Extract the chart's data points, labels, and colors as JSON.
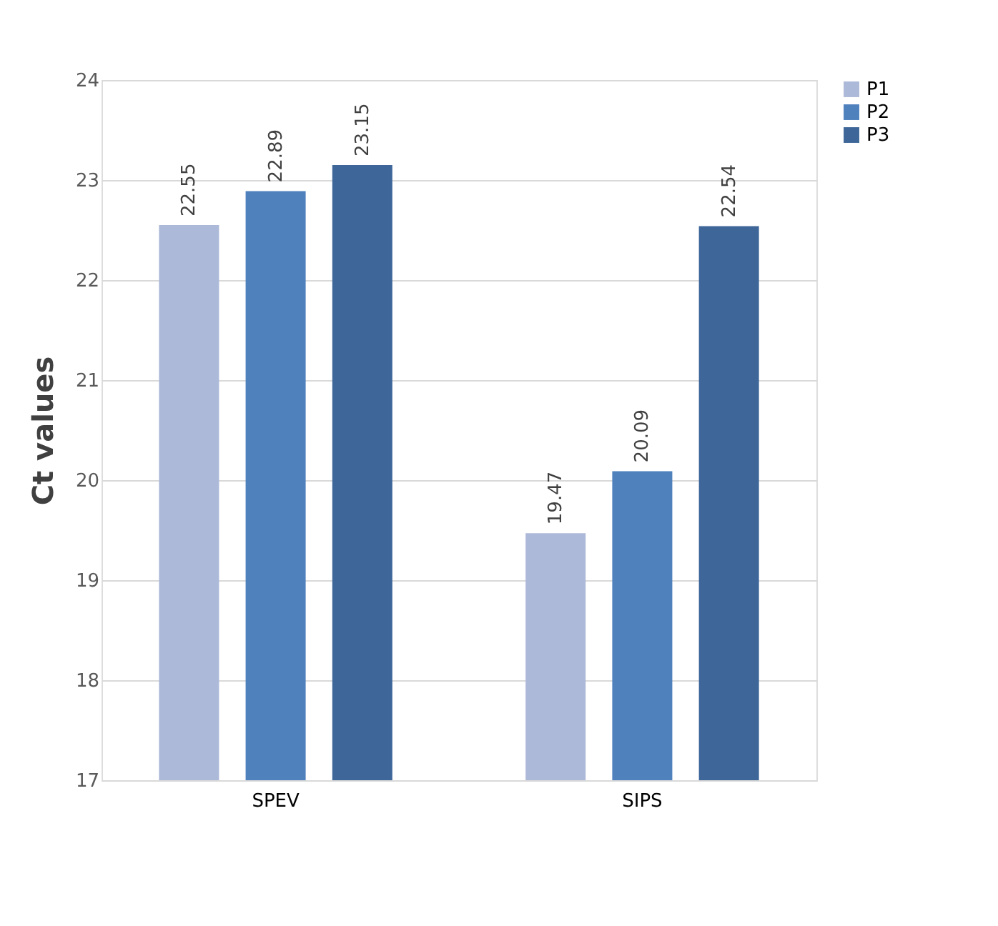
{
  "chart_data": {
    "type": "bar",
    "ylabel": "Ct values",
    "categories": [
      "SPEV",
      "SIPS"
    ],
    "series": [
      {
        "name": "P1",
        "color": "#adb9d8",
        "values": [
          22.55,
          19.47
        ]
      },
      {
        "name": "P2",
        "color": "#4f81bd",
        "values": [
          22.89,
          20.09
        ]
      },
      {
        "name": "P3",
        "color": "#3e6699",
        "values": [
          23.15,
          22.54
        ]
      }
    ],
    "ylim": [
      17,
      24
    ],
    "yticks": [
      17,
      18,
      19,
      20,
      21,
      22,
      23,
      24
    ],
    "grid": "y",
    "legend": "top right",
    "data_labels": true
  }
}
